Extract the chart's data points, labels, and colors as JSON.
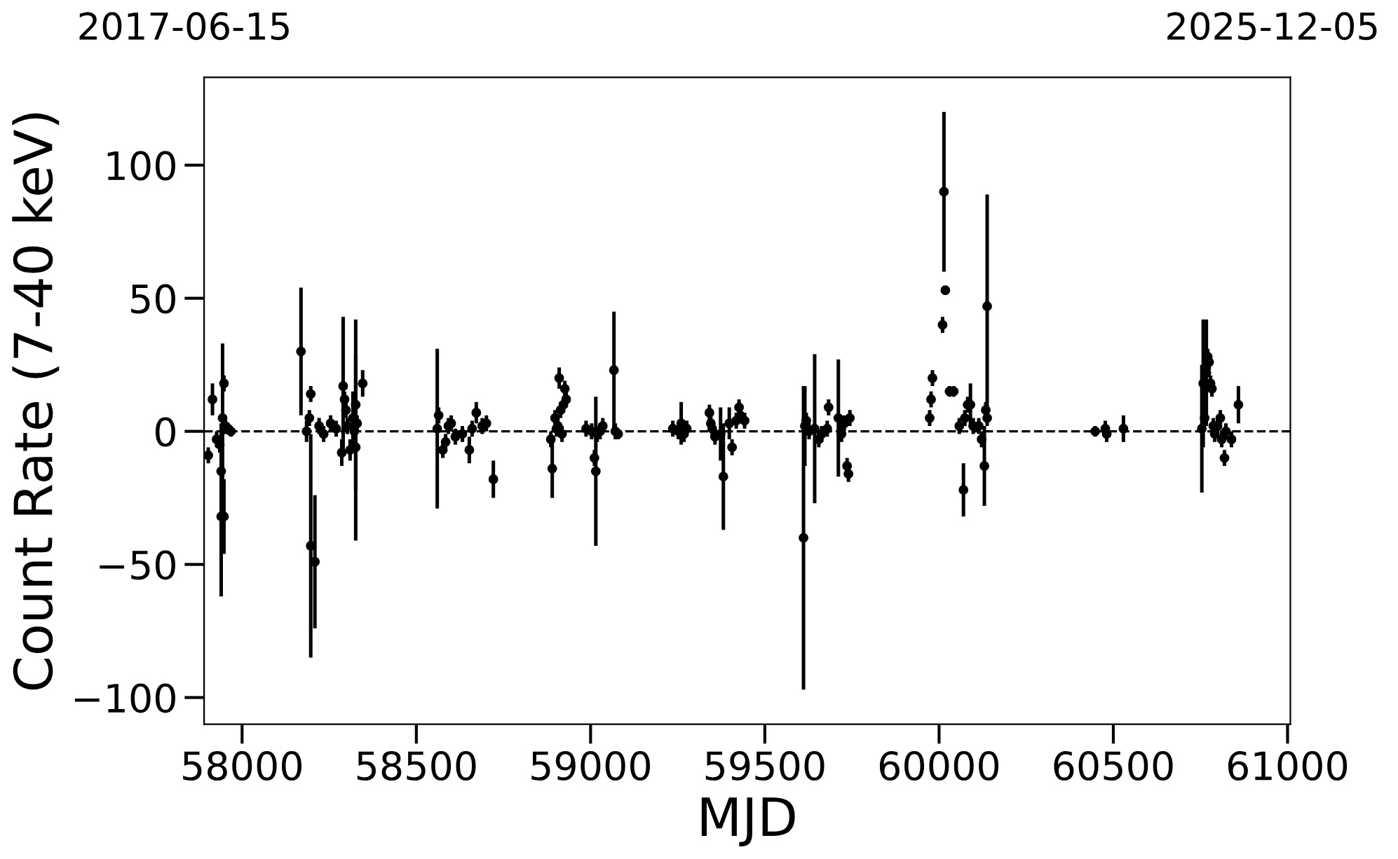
{
  "chart_data": {
    "type": "scatter",
    "xlabel": "MJD",
    "ylabel": "Count Rate (7-40 keV)",
    "annotations": [
      "2017-06-15",
      "2025-12-05"
    ],
    "xlim": [
      57891,
      61008
    ],
    "ylim": [
      -110,
      133
    ],
    "xticks": [
      58000,
      58500,
      59000,
      59500,
      60000,
      60500,
      61000
    ],
    "yticks": [
      {
        "value": -100,
        "label": "−100"
      },
      {
        "value": -50,
        "label": "−50"
      },
      0,
      50,
      100
    ],
    "marker": "circle",
    "grid": false,
    "ref_lines": [
      {
        "axis": "y",
        "value": 0,
        "label": null,
        "color": "#000000",
        "line_style": "dashed"
      }
    ],
    "series": [
      {
        "color": "#000000",
        "x": [
          57903,
          57915,
          57927,
          57936,
          57940,
          57940,
          57948,
          57944,
          57948,
          57952,
          57960,
          57968,
          58169,
          58193,
          58197,
          58197,
          58209,
          58185,
          58221,
          58234,
          58254,
          58270,
          58286,
          58290,
          58294,
          58298,
          58302,
          58310,
          58318,
          58322,
          58326,
          58330,
          58346,
          58326,
          58560,
          58564,
          58576,
          58584,
          58592,
          58600,
          58612,
          58632,
          58652,
          58660,
          58672,
          58689,
          58701,
          58721,
          58886,
          58890,
          58898,
          58902,
          58906,
          58910,
          58914,
          58922,
          58926,
          58930,
          58918,
          58987,
          59003,
          59011,
          59015,
          59019,
          59027,
          59035,
          59067,
          59071,
          59079,
          59236,
          59252,
          59260,
          59268,
          59276,
          59341,
          59345,
          59349,
          59357,
          59373,
          59381,
          59398,
          59406,
          59418,
          59426,
          59430,
          59442,
          59611,
          59615,
          59619,
          59627,
          59643,
          59655,
          59663,
          59679,
          59683,
          59711,
          59720,
          59728,
          59736,
          59740,
          59744,
          59973,
          59977,
          59981,
          60010,
          60014,
          60018,
          60030,
          60042,
          60058,
          60070,
          60074,
          60082,
          60090,
          60098,
          60114,
          60122,
          60130,
          60134,
          60138,
          60138,
          60448,
          60477,
          60481,
          60529,
          60754,
          60758,
          60762,
          60767,
          60771,
          60775,
          60779,
          60783,
          60787,
          60791,
          60799,
          60807,
          60811,
          60819,
          60823,
          60839,
          60859
        ],
        "values": [
          -9,
          12,
          -3,
          -5,
          -15,
          -32,
          -32,
          5,
          18,
          2,
          1,
          0,
          30,
          5,
          14,
          -43,
          -49,
          0,
          2,
          -1,
          3,
          1,
          -8,
          17,
          12,
          8,
          2,
          -7,
          5,
          0,
          10,
          3,
          18,
          -6,
          1,
          6,
          -7,
          -4,
          2,
          3,
          -2,
          -1,
          -7,
          1,
          7,
          2,
          3,
          -18,
          -3,
          -14,
          5,
          1,
          2,
          20,
          8,
          10,
          16,
          12,
          -1,
          1,
          0,
          -10,
          -15,
          -1,
          0,
          2,
          23,
          0,
          -1,
          1,
          0,
          3,
          -1,
          1,
          7,
          3,
          1,
          -2,
          -1,
          -17,
          3,
          -6,
          4,
          9,
          6,
          4,
          -40,
          2,
          4,
          0,
          1,
          -3,
          -1,
          1,
          9,
          5,
          -1,
          3,
          -13,
          -16,
          5,
          5,
          12,
          20,
          40,
          90,
          53,
          15,
          15,
          2,
          -22,
          5,
          10,
          10,
          2,
          2,
          -3,
          -13,
          8,
          5,
          47,
          0,
          1,
          -1,
          1,
          1,
          18,
          5,
          22,
          28,
          26,
          18,
          16,
          2,
          -1,
          2,
          5,
          -3,
          -10,
          0,
          -3,
          10
        ],
        "errors": [
          3,
          6,
          3,
          3,
          18,
          30,
          14,
          28,
          3,
          3,
          2,
          2,
          24,
          3,
          3,
          42,
          25,
          4,
          3,
          3,
          3,
          3,
          5,
          26,
          3,
          3,
          3,
          4,
          10,
          3,
          32,
          3,
          5,
          35,
          30,
          3,
          3,
          3,
          3,
          3,
          3,
          3,
          5,
          3,
          4,
          3,
          3,
          7,
          3,
          11,
          3,
          3,
          3,
          4,
          3,
          3,
          3,
          3,
          3,
          3,
          3,
          3,
          28,
          3,
          3,
          3,
          22,
          3,
          2,
          3,
          3,
          8,
          3,
          3,
          3,
          3,
          3,
          3,
          10,
          20,
          6,
          3,
          3,
          3,
          3,
          3,
          57,
          15,
          3,
          3,
          28,
          3,
          3,
          3,
          3,
          22,
          3,
          3,
          3,
          3,
          3,
          3,
          3,
          3,
          3,
          30,
          1,
          2,
          2,
          3,
          10,
          3,
          3,
          8,
          3,
          3,
          3,
          15,
          3,
          3,
          42,
          2,
          3,
          3,
          5,
          24,
          24,
          3,
          20,
          3,
          3,
          3,
          3,
          3,
          3,
          3,
          3,
          3,
          3,
          3,
          3,
          7
        ]
      }
    ]
  }
}
